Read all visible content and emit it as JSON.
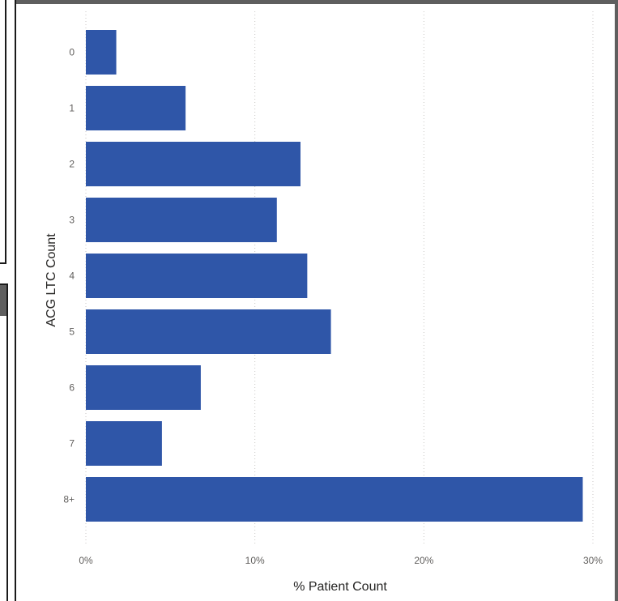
{
  "chart_data": {
    "type": "bar",
    "orientation": "horizontal",
    "categories": [
      "0",
      "1",
      "2",
      "3",
      "4",
      "5",
      "6",
      "7",
      "8+"
    ],
    "values": [
      1.8,
      5.9,
      12.7,
      11.3,
      13.1,
      14.5,
      6.8,
      4.5,
      29.4
    ],
    "xlabel": "% Patient Count",
    "ylabel": "ACG LTC Count",
    "x_ticks": [
      "0%",
      "10%",
      "20%",
      "30%"
    ],
    "xlim": [
      0,
      30
    ],
    "value_unit": "%",
    "grid": "vertical dotted",
    "bar_color": "#2f56a8"
  }
}
